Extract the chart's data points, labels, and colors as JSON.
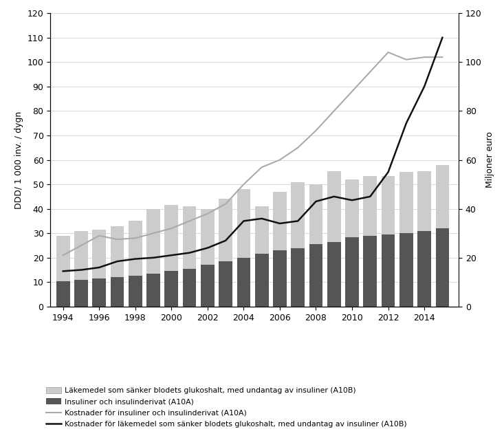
{
  "years": [
    1994,
    1995,
    1996,
    1997,
    1998,
    1999,
    2000,
    2001,
    2002,
    2003,
    2004,
    2005,
    2006,
    2007,
    2008,
    2009,
    2010,
    2011,
    2012,
    2013,
    2014,
    2015
  ],
  "bar_A10A": [
    10.5,
    11.0,
    11.5,
    12.0,
    12.5,
    13.5,
    14.5,
    15.5,
    17.0,
    18.5,
    20.0,
    21.5,
    23.0,
    24.0,
    25.5,
    26.5,
    28.5,
    29.0,
    29.5,
    30.0,
    31.0,
    32.0
  ],
  "bar_A10B_top": [
    18.5,
    20.0,
    20.0,
    21.0,
    22.5,
    26.5,
    27.0,
    25.5,
    23.0,
    25.5,
    28.0,
    19.5,
    24.0,
    27.0,
    24.5,
    29.0,
    23.5,
    24.5,
    24.0,
    25.0,
    24.5,
    26.0
  ],
  "cost_A10A": [
    21.0,
    25.0,
    29.0,
    27.5,
    28.0,
    30.0,
    32.0,
    35.0,
    38.0,
    42.0,
    50.0,
    57.0,
    60.0,
    65.0,
    72.0,
    80.0,
    88.0,
    96.0,
    104.0,
    101.0,
    102.0,
    102.0
  ],
  "cost_A10B": [
    14.5,
    15.0,
    16.0,
    18.5,
    19.5,
    20.0,
    21.0,
    22.0,
    24.0,
    27.0,
    35.0,
    36.0,
    34.0,
    35.0,
    43.0,
    45.0,
    43.5,
    45.0,
    55.0,
    75.0,
    90.0,
    110.0
  ],
  "bar_A10A_color": "#555555",
  "bar_A10B_color": "#cccccc",
  "cost_A10A_color": "#aaaaaa",
  "cost_A10B_color": "#111111",
  "ylabel_left": "DDD/ 1 000 inv. / dygn",
  "ylabel_right": "Miljoner euro",
  "ylim": [
    0,
    120
  ],
  "yticks_left": [
    0,
    10,
    20,
    30,
    40,
    50,
    60,
    70,
    80,
    90,
    100,
    110,
    120
  ],
  "yticks_right": [
    0,
    20,
    40,
    60,
    80,
    100,
    120
  ],
  "xticks": [
    1994,
    1996,
    1998,
    2000,
    2002,
    2004,
    2006,
    2008,
    2010,
    2012,
    2014
  ],
  "legend_labels": [
    "Läkemedel som sänker blodets glukoshalt, med undantag av insuliner (A10B)",
    "Insuliner och insulinderivat (A10A)",
    "Kostnader för insuliner och insulinderivat (A10A)",
    "Kostnader för läkemedel som sänker blodets glukoshalt, med undantag av insuliner (A10B)"
  ]
}
